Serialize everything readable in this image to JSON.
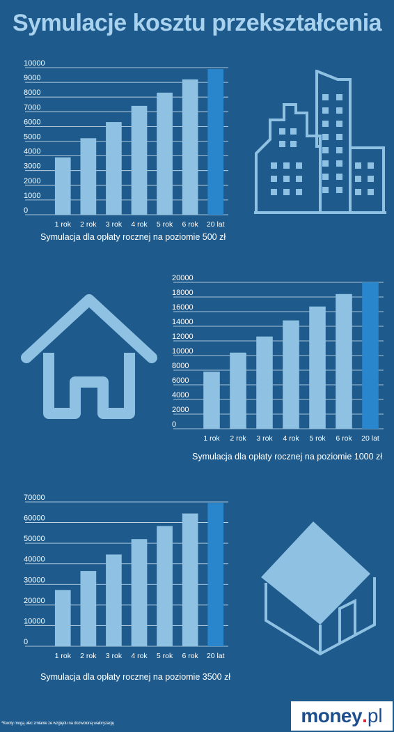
{
  "title": "Symulacje kosztu przekształcenia",
  "chart_data": [
    {
      "type": "bar",
      "categories": [
        "1 rok",
        "2 rok",
        "3 rok",
        "4 rok",
        "5 rok",
        "6 rok",
        "20 lat"
      ],
      "values": [
        3900,
        5200,
        6300,
        7400,
        8300,
        9200,
        9900
      ],
      "yticks": [
        0,
        1000,
        2000,
        3000,
        4000,
        5000,
        6000,
        7000,
        8000,
        9000,
        10000
      ],
      "ylim": [
        0,
        10000
      ],
      "caption": "Symulacja dla opłaty rocznej na poziomie 500 zł",
      "colors": {
        "bar": "#8fc1e3",
        "highlight": "#2a86cc",
        "grid": "#d6e6f2"
      }
    },
    {
      "type": "bar",
      "categories": [
        "1 rok",
        "2 rok",
        "3 rok",
        "4 rok",
        "5 rok",
        "6 rok",
        "20 lat"
      ],
      "values": [
        7800,
        10400,
        12600,
        14800,
        16700,
        18400,
        20000
      ],
      "yticks": [
        0,
        2000,
        4000,
        6000,
        8000,
        10000,
        12000,
        14000,
        16000,
        18000,
        20000
      ],
      "ylim": [
        0,
        20000
      ],
      "caption": "Symulacja dla opłaty rocznej na poziomie 1000 zł",
      "colors": {
        "bar": "#8fc1e3",
        "highlight": "#2a86cc",
        "grid": "#d6e6f2"
      }
    },
    {
      "type": "bar",
      "categories": [
        "1 rok",
        "2 rok",
        "3 rok",
        "4 rok",
        "5 rok",
        "6 rok",
        "20 lat"
      ],
      "values": [
        27300,
        36500,
        44500,
        52000,
        58300,
        64400,
        69500
      ],
      "yticks": [
        0,
        10000,
        20000,
        30000,
        40000,
        50000,
        60000,
        70000
      ],
      "ylim": [
        0,
        70000
      ],
      "caption": "Symulacja dla opłaty rocznej na poziomie 3500 zł",
      "colors": {
        "bar": "#8fc1e3",
        "highlight": "#2a86cc",
        "grid": "#d6e6f2"
      }
    }
  ],
  "icons": [
    "buildings-icon",
    "house-icon",
    "house-3d-icon"
  ],
  "footnote": "*Kwoty mogą ulec zmianie ze względu na dozwoloną waloryzację",
  "logo": {
    "main": "money",
    "dot": ".",
    "tld": "pl"
  }
}
